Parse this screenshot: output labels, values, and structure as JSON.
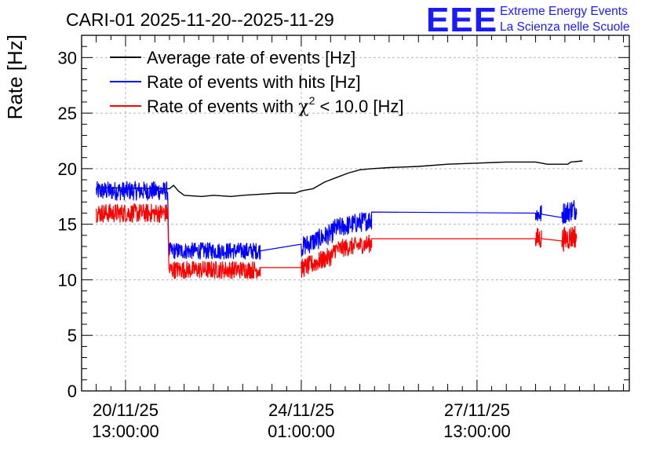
{
  "header": {
    "title": "CARI-01 2025-11-20--2025-11-29",
    "logo_text": "EEE",
    "logo_line1": "Extreme Energy Events",
    "logo_line2": "La Scienza nelle Scuole"
  },
  "colors": {
    "average": "#000000",
    "hits": "#0000ff",
    "chi2": "#ff0000",
    "grid": "#b4b4b4",
    "logo": "#1a1aff"
  },
  "chart_data": {
    "type": "line",
    "title": "CARI-01 2025-11-20--2025-11-29",
    "xlabel": "",
    "ylabel": "Rate [Hz]",
    "ylim": [
      0,
      32
    ],
    "xlim": [
      -0.75,
      8.6
    ],
    "x_unit": "days since 20/11/25 13:00:00",
    "grid": true,
    "legend_position": "top-left",
    "x_ticks": [
      {
        "x": 0,
        "line1": "20/11/25",
        "line2": "13:00:00"
      },
      {
        "x": 3,
        "line1": "24/11/25",
        "line2": "01:00:00"
      },
      {
        "x": 6,
        "line1": "27/11/25",
        "line2": "13:00:00"
      }
    ],
    "y_ticks": [
      0,
      5,
      10,
      15,
      20,
      25,
      30
    ],
    "legend": [
      {
        "name": "Average rate of events [Hz]",
        "key": "average"
      },
      {
        "name": "Rate of events with hits [Hz]",
        "key": "hits"
      },
      {
        "name_prefix": "Rate of events with ",
        "name_symbol": "χ",
        "name_sup": "2",
        "name_suffix": " < 10.0 [Hz]",
        "key": "chi2"
      }
    ],
    "series": [
      {
        "name": "Average rate of events [Hz]",
        "key": "average",
        "points": [
          [
            -0.5,
            18.3
          ],
          [
            0.72,
            18.2
          ],
          [
            0.75,
            18.2
          ],
          [
            0.82,
            18.5
          ],
          [
            0.9,
            18.0
          ],
          [
            1.0,
            17.6
          ],
          [
            1.3,
            17.5
          ],
          [
            1.5,
            17.6
          ],
          [
            1.8,
            17.5
          ],
          [
            2.0,
            17.6
          ],
          [
            2.3,
            17.7
          ],
          [
            2.6,
            17.8
          ],
          [
            2.9,
            17.8
          ],
          [
            3.0,
            18.0
          ],
          [
            3.2,
            18.2
          ],
          [
            3.4,
            18.8
          ],
          [
            3.6,
            19.2
          ],
          [
            3.8,
            19.6
          ],
          [
            4.0,
            19.9
          ],
          [
            4.2,
            20.0
          ],
          [
            4.5,
            20.1
          ],
          [
            5.0,
            20.2
          ],
          [
            5.5,
            20.4
          ],
          [
            6.0,
            20.5
          ],
          [
            6.5,
            20.6
          ],
          [
            7.0,
            20.6
          ],
          [
            7.2,
            20.4
          ],
          [
            7.55,
            20.4
          ],
          [
            7.6,
            20.6
          ],
          [
            7.8,
            20.7
          ]
        ]
      },
      {
        "name": "Rate of events with hits [Hz]",
        "key": "hits",
        "segments": [
          {
            "type": "noisy",
            "x0": -0.5,
            "x1": 0.72,
            "center": 18.0,
            "amp": 0.85
          },
          {
            "type": "noisy",
            "x0": 0.74,
            "x1": 2.3,
            "center": 12.6,
            "amp": 0.75
          },
          {
            "type": "line",
            "points": [
              [
                2.3,
                12.6
              ],
              [
                3.0,
                13.2
              ]
            ]
          },
          {
            "type": "noisy",
            "x0": 3.0,
            "x1": 3.55,
            "center": 13.6,
            "amp": 0.9,
            "slope": 2.4
          },
          {
            "type": "noisy",
            "x0": 3.55,
            "x1": 4.2,
            "center": 15.0,
            "amp": 0.9,
            "slope": 1.3
          },
          {
            "type": "line",
            "points": [
              [
                4.2,
                16.1
              ],
              [
                7.0,
                16.0
              ]
            ]
          },
          {
            "type": "noisy",
            "x0": 7.0,
            "x1": 7.1,
            "center": 15.9,
            "amp": 0.9
          },
          {
            "type": "line",
            "points": [
              [
                7.1,
                15.9
              ],
              [
                7.45,
                15.6
              ]
            ]
          },
          {
            "type": "noisy",
            "x0": 7.45,
            "x1": 7.7,
            "center": 16.2,
            "amp": 1.0,
            "slope": 2.0
          }
        ]
      },
      {
        "name": "Rate of events with χ² < 10.0 [Hz]",
        "key": "chi2",
        "segments": [
          {
            "type": "noisy",
            "x0": -0.5,
            "x1": 0.72,
            "center": 16.0,
            "amp": 0.85
          },
          {
            "type": "noisy",
            "x0": 0.74,
            "x1": 2.3,
            "center": 10.9,
            "amp": 0.8
          },
          {
            "type": "line",
            "points": [
              [
                2.3,
                11.1
              ],
              [
                3.0,
                11.1
              ]
            ]
          },
          {
            "type": "noisy",
            "x0": 3.0,
            "x1": 3.55,
            "center": 11.6,
            "amp": 0.85,
            "slope": 2.2
          },
          {
            "type": "noisy",
            "x0": 3.55,
            "x1": 4.2,
            "center": 13.0,
            "amp": 0.8,
            "slope": 0.9
          },
          {
            "type": "line",
            "points": [
              [
                4.2,
                13.7
              ],
              [
                7.0,
                13.7
              ]
            ]
          },
          {
            "type": "noisy",
            "x0": 7.0,
            "x1": 7.1,
            "center": 13.7,
            "amp": 1.0
          },
          {
            "type": "line",
            "points": [
              [
                7.1,
                13.7
              ],
              [
                7.45,
                13.5
              ]
            ]
          },
          {
            "type": "noisy",
            "x0": 7.45,
            "x1": 7.7,
            "center": 13.8,
            "amp": 1.1,
            "slope": 1.5
          }
        ]
      }
    ]
  }
}
